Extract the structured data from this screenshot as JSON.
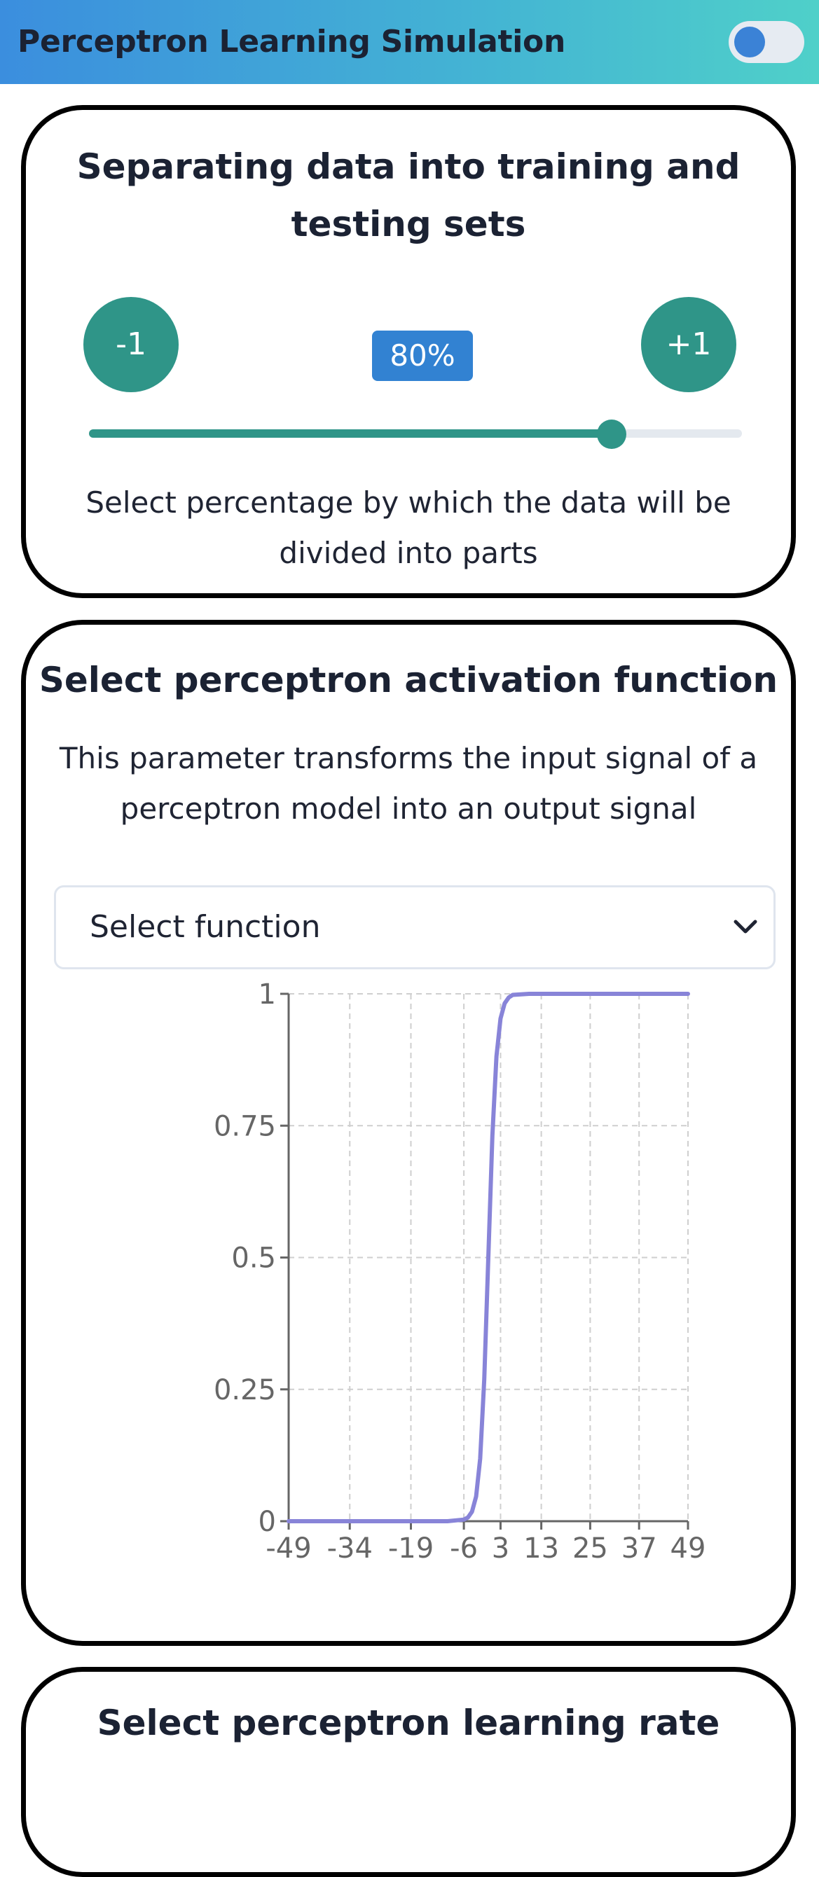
{
  "header": {
    "title": "Perceptron Learning Simulation",
    "toggle_state": "off"
  },
  "split_card": {
    "title_line1": "Separating data into training and",
    "title_line2": "testing sets",
    "decrement_label": "-1",
    "increment_label": "+1",
    "percent_label": "80%",
    "slider_value_percent": 80,
    "description_line1": "Select percentage by which the data will be",
    "description_line2": "divided into parts",
    "accent_color": "#2f9588",
    "badge_color": "#3282d2"
  },
  "activation_card": {
    "title": "Select perceptron activation function",
    "description_line1": "This parameter transforms the input signal of a",
    "description_line2": "perceptron model into an output signal",
    "select_placeholder": "Select function",
    "select_icon": "chevron-down-icon"
  },
  "chart_data": {
    "type": "line",
    "title": "",
    "xlabel": "",
    "ylabel": "",
    "x_tick_labels": [
      "-49",
      "-34",
      "-19",
      "-6",
      "3",
      "13",
      "25",
      "37",
      "49"
    ],
    "x_tick_values": [
      -49,
      -34,
      -19,
      -6,
      3,
      13,
      25,
      37,
      49
    ],
    "y_tick_labels": [
      "0",
      "0.25",
      "0.5",
      "0.75",
      "1"
    ],
    "y_tick_values": [
      0,
      0.25,
      0.5,
      0.75,
      1
    ],
    "xlim": [
      -49,
      49
    ],
    "ylim": [
      0,
      1
    ],
    "grid": true,
    "series": [
      {
        "color": "#8884d8",
        "x": [
          -49,
          -34,
          -19,
          -10,
          -6,
          -5,
          -4,
          -3,
          -2,
          -1,
          0,
          1,
          2,
          3,
          4,
          5,
          6,
          10,
          25,
          37,
          49
        ],
        "y": [
          0,
          0,
          0,
          0,
          0.003,
          0.007,
          0.018,
          0.047,
          0.119,
          0.269,
          0.5,
          0.731,
          0.881,
          0.953,
          0.982,
          0.993,
          0.998,
          1,
          1,
          1,
          1
        ]
      }
    ]
  },
  "learning_rate_card": {
    "title": "Select perceptron learning rate"
  }
}
